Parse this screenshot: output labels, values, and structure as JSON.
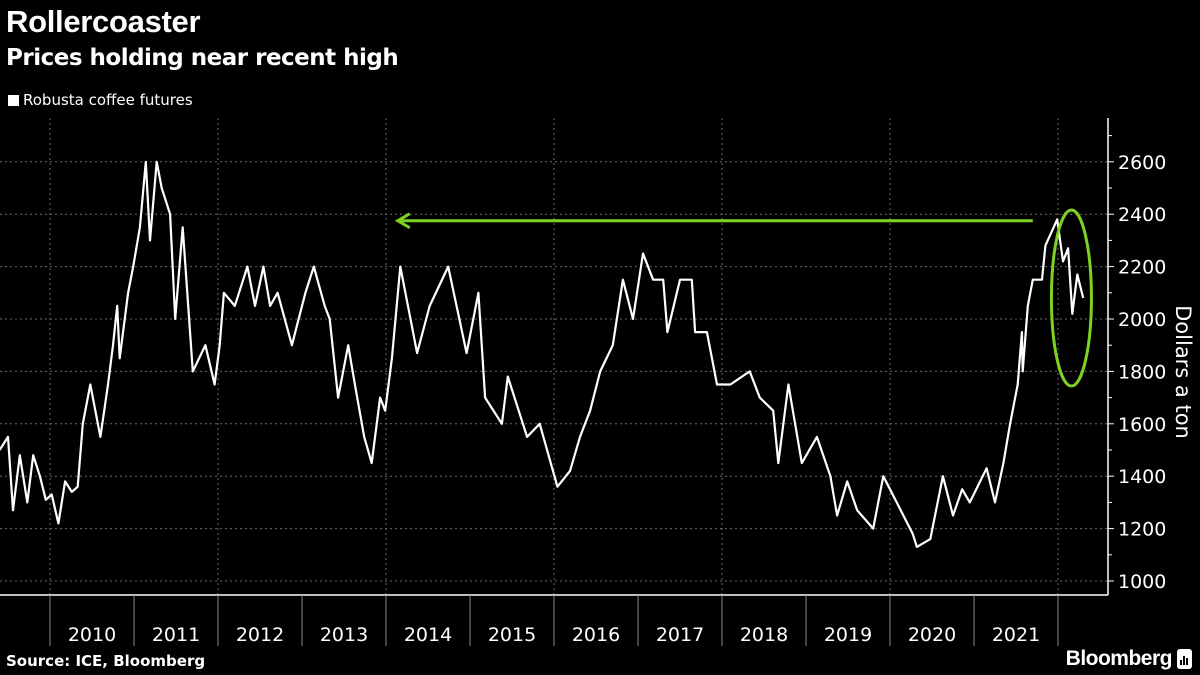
{
  "chart_data": {
    "type": "line",
    "title": "Rollercoaster",
    "subtitle": "Prices holding near recent high",
    "ylabel": "Dollars a ton",
    "xlabel": "",
    "ylim": [
      1000,
      2750
    ],
    "xlim": [
      2009.4,
      2022.4
    ],
    "yticks": [
      1000,
      1200,
      1400,
      1600,
      1800,
      2000,
      2200,
      2400,
      2600
    ],
    "xtick_labels": [
      "2010",
      "2011",
      "2012",
      "2013",
      "2014",
      "2015",
      "2016",
      "2017",
      "2018",
      "2019",
      "2020",
      "2021"
    ],
    "grid": true,
    "legend_position": "top-left",
    "series": [
      {
        "name": "Robusta coffee futures",
        "color": "#ffffff",
        "points": [
          [
            2009.4,
            1500
          ],
          [
            2009.5,
            1550
          ],
          [
            2009.56,
            1270
          ],
          [
            2009.64,
            1480
          ],
          [
            2009.73,
            1300
          ],
          [
            2009.8,
            1480
          ],
          [
            2009.88,
            1400
          ],
          [
            2009.95,
            1310
          ],
          [
            2010.02,
            1330
          ],
          [
            2010.1,
            1220
          ],
          [
            2010.18,
            1380
          ],
          [
            2010.26,
            1340
          ],
          [
            2010.33,
            1360
          ],
          [
            2010.39,
            1600
          ],
          [
            2010.48,
            1750
          ],
          [
            2010.6,
            1550
          ],
          [
            2010.69,
            1750
          ],
          [
            2010.75,
            1900
          ],
          [
            2010.8,
            2050
          ],
          [
            2010.83,
            1850
          ],
          [
            2010.93,
            2100
          ],
          [
            2010.99,
            2200
          ],
          [
            2011.07,
            2350
          ],
          [
            2011.14,
            2600
          ],
          [
            2011.19,
            2300
          ],
          [
            2011.27,
            2600
          ],
          [
            2011.33,
            2500
          ],
          [
            2011.43,
            2400
          ],
          [
            2011.49,
            2000
          ],
          [
            2011.58,
            2350
          ],
          [
            2011.7,
            1800
          ],
          [
            2011.85,
            1900
          ],
          [
            2011.96,
            1750
          ],
          [
            2012.02,
            1900
          ],
          [
            2012.07,
            2100
          ],
          [
            2012.2,
            2050
          ],
          [
            2012.35,
            2200
          ],
          [
            2012.44,
            2050
          ],
          [
            2012.54,
            2200
          ],
          [
            2012.62,
            2050
          ],
          [
            2012.71,
            2100
          ],
          [
            2012.88,
            1900
          ],
          [
            2013.04,
            2100
          ],
          [
            2013.14,
            2200
          ],
          [
            2013.27,
            2050
          ],
          [
            2013.33,
            2000
          ],
          [
            2013.43,
            1700
          ],
          [
            2013.55,
            1900
          ],
          [
            2013.63,
            1750
          ],
          [
            2013.74,
            1550
          ],
          [
            2013.83,
            1450
          ],
          [
            2013.93,
            1700
          ],
          [
            2013.99,
            1650
          ],
          [
            2014.07,
            1850
          ],
          [
            2014.17,
            2200
          ],
          [
            2014.37,
            1870
          ],
          [
            2014.52,
            2050
          ],
          [
            2014.74,
            2200
          ],
          [
            2014.96,
            1870
          ],
          [
            2015.1,
            2100
          ],
          [
            2015.18,
            1700
          ],
          [
            2015.38,
            1600
          ],
          [
            2015.45,
            1780
          ],
          [
            2015.68,
            1550
          ],
          [
            2015.83,
            1600
          ],
          [
            2016.04,
            1360
          ],
          [
            2016.19,
            1420
          ],
          [
            2016.31,
            1550
          ],
          [
            2016.43,
            1650
          ],
          [
            2016.55,
            1800
          ],
          [
            2016.7,
            1900
          ],
          [
            2016.82,
            2150
          ],
          [
            2016.94,
            2000
          ],
          [
            2017.06,
            2250
          ],
          [
            2017.18,
            2150
          ],
          [
            2017.3,
            2150
          ],
          [
            2017.35,
            1950
          ],
          [
            2017.5,
            2150
          ],
          [
            2017.64,
            2150
          ],
          [
            2017.68,
            1950
          ],
          [
            2017.82,
            1950
          ],
          [
            2017.94,
            1750
          ],
          [
            2018.1,
            1750
          ],
          [
            2018.33,
            1800
          ],
          [
            2018.45,
            1700
          ],
          [
            2018.61,
            1650
          ],
          [
            2018.67,
            1450
          ],
          [
            2018.79,
            1750
          ],
          [
            2018.95,
            1450
          ],
          [
            2019.13,
            1550
          ],
          [
            2019.29,
            1400
          ],
          [
            2019.37,
            1250
          ],
          [
            2019.49,
            1380
          ],
          [
            2019.61,
            1270
          ],
          [
            2019.8,
            1200
          ],
          [
            2019.92,
            1400
          ],
          [
            2020.08,
            1300
          ],
          [
            2020.27,
            1180
          ],
          [
            2020.32,
            1130
          ],
          [
            2020.48,
            1160
          ],
          [
            2020.63,
            1400
          ],
          [
            2020.75,
            1250
          ],
          [
            2020.86,
            1350
          ],
          [
            2020.95,
            1300
          ],
          [
            2021.15,
            1430
          ],
          [
            2021.25,
            1300
          ],
          [
            2021.35,
            1450
          ],
          [
            2021.43,
            1600
          ],
          [
            2021.52,
            1750
          ],
          [
            2021.57,
            1950
          ],
          [
            2021.58,
            1800
          ],
          [
            2021.64,
            2050
          ],
          [
            2021.7,
            2150
          ],
          [
            2021.81,
            2150
          ],
          [
            2021.85,
            2280
          ],
          [
            2021.99,
            2380
          ],
          [
            2022.06,
            2220
          ],
          [
            2022.12,
            2270
          ],
          [
            2022.17,
            2020
          ],
          [
            2022.23,
            2170
          ],
          [
            2022.3,
            2080
          ]
        ]
      }
    ],
    "annotations": {
      "color": "#7ed321",
      "arrow": {
        "from": [
          2021.7,
          2375
        ],
        "to": [
          2014.14,
          2375
        ]
      },
      "highlight": "ellipse around latest prices"
    }
  },
  "footer": {
    "source": "Source: ICE, Bloomberg",
    "brand": "Bloomberg"
  }
}
